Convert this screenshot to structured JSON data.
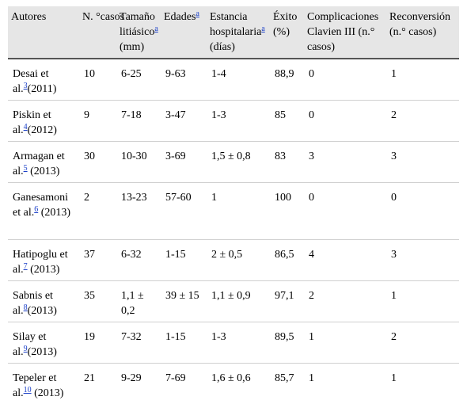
{
  "headers": [
    {
      "text": "Autores",
      "sup": ""
    },
    {
      "text": "N. °casos",
      "sup": ""
    },
    {
      "text": "Tamaño litiásico",
      "sup": "a",
      "after": " (mm)"
    },
    {
      "text": "Edades",
      "sup": "a",
      "after": ""
    },
    {
      "text": "Estancia hospitalaria",
      "sup": "a",
      "after": " (días)"
    },
    {
      "text": "Éxito (%)",
      "sup": ""
    },
    {
      "text": "Complicaciones Clavien III (n.° casos)",
      "sup": ""
    },
    {
      "text": "Reconversión (n.° casos)",
      "sup": ""
    }
  ],
  "rows": [
    {
      "author": "Desai et al.",
      "ref": "3",
      "year": "(2011)",
      "cases": "10",
      "size": "6-25",
      "ages": "9-63",
      "stay": "1-4",
      "success": "88,9",
      "complications": "0",
      "reconversion": "1"
    },
    {
      "author": "Piskin et al.",
      "ref": "4",
      "year": "(2012)",
      "cases": "9",
      "size": "7-18",
      "ages": "3-47",
      "stay": "1-3",
      "success": "85",
      "complications": "0",
      "reconversion": "2"
    },
    {
      "author": "Armagan et al.",
      "ref": "5",
      "year": " (2013)",
      "cases": "30",
      "size": "10-30",
      "ages": "3-69",
      "stay": "1,5 ± 0,8",
      "success": "83",
      "complications": "3",
      "reconversion": "3"
    },
    {
      "author": "Ganesamoni et al.",
      "ref": "6",
      "year": " (2013)",
      "cases": "2",
      "size": "13-23",
      "ages": "57-60",
      "stay": "1",
      "success": "100",
      "complications": "0",
      "reconversion": "0"
    },
    {
      "author": "Hatipoglu et al.",
      "ref": "7",
      "year": " (2013)",
      "cases": "37",
      "size": "6-32",
      "ages": "1-15",
      "stay": "2 ± 0,5",
      "success": "86,5",
      "complications": "4",
      "reconversion": "3"
    },
    {
      "author": "Sabnis et al.",
      "ref": "8",
      "year": "(2013)",
      "cases": "35",
      "size": "1,1 ± 0,2",
      "ages": "39 ± 15",
      "stay": "1,1 ± 0,9",
      "success": "97,1",
      "complications": "2",
      "reconversion": "1"
    },
    {
      "author": "Silay et al.",
      "ref": "9",
      "year": "(2013)",
      "cases": "19",
      "size": "7-32",
      "ages": "1-15",
      "stay": "1-3",
      "success": "89,5",
      "complications": "1",
      "reconversion": "2"
    },
    {
      "author": "Tepeler et al.",
      "ref": "10",
      "year": " (2013)",
      "cases": "21",
      "size": "9-29",
      "ages": "7-69",
      "stay": "1,6 ± 0,6",
      "success": "85,7",
      "complications": "1",
      "reconversion": "1"
    }
  ]
}
